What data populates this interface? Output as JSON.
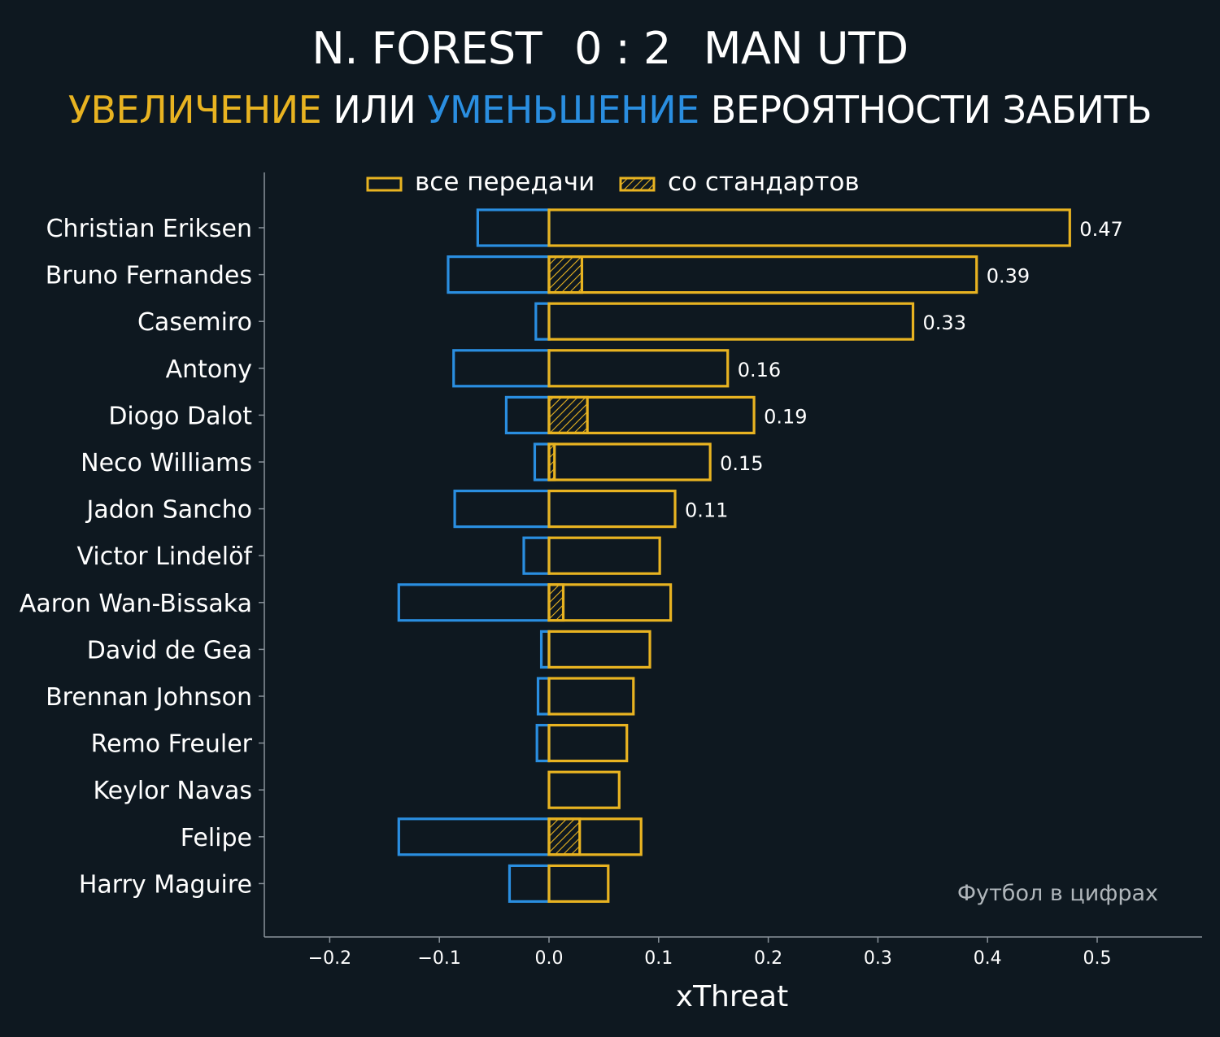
{
  "title": {
    "home_team": "N. FOREST",
    "score": "0 : 2",
    "away_team": "MAN UTD"
  },
  "subtitle": {
    "part_increase": "УВЕЛИЧЕНИЕ",
    "part_or": "ИЛИ",
    "part_decrease": "УМЕНЬШЕНИЕ",
    "part_rest": "ВЕРОЯТНОСТИ ЗАБИТЬ"
  },
  "watermark": "Футбол в цифрах",
  "colors": {
    "background": "#0e1820",
    "increase": "#e8b321",
    "decrease": "#2a8ee0",
    "text": "#ffffff",
    "axis": "#8a939b"
  },
  "chart_data": {
    "type": "bar",
    "orientation": "horizontal",
    "xlabel": "xThreat",
    "xlim": [
      -0.26,
      0.59
    ],
    "xticks": [
      -0.2,
      -0.1,
      0.0,
      0.1,
      0.2,
      0.3,
      0.4,
      0.5
    ],
    "xtick_labels": [
      "−0.2",
      "−0.1",
      "0.0",
      "0.1",
      "0.2",
      "0.3",
      "0.4",
      "0.5"
    ],
    "legend": {
      "position": "top",
      "entries": [
        {
          "label": "все передачи",
          "style": "outline"
        },
        {
          "label": "со стандартов",
          "style": "hatched"
        }
      ]
    },
    "grid": false,
    "players": [
      {
        "name": "Christian Eriksen",
        "positive": 0.475,
        "negative": -0.065,
        "set_piece": 0.0,
        "value_label": "0.47"
      },
      {
        "name": "Bruno Fernandes",
        "positive": 0.39,
        "negative": -0.092,
        "set_piece": 0.03,
        "value_label": "0.39"
      },
      {
        "name": "Casemiro",
        "positive": 0.332,
        "negative": -0.012,
        "set_piece": 0.0,
        "value_label": "0.33"
      },
      {
        "name": "Antony",
        "positive": 0.163,
        "negative": -0.087,
        "set_piece": 0.0,
        "value_label": "0.16"
      },
      {
        "name": "Diogo Dalot",
        "positive": 0.187,
        "negative": -0.039,
        "set_piece": 0.035,
        "value_label": "0.19"
      },
      {
        "name": "Neco Williams",
        "positive": 0.147,
        "negative": -0.013,
        "set_piece": 0.005,
        "value_label": "0.15"
      },
      {
        "name": "Jadon Sancho",
        "positive": 0.115,
        "negative": -0.086,
        "set_piece": 0.0,
        "value_label": "0.11"
      },
      {
        "name": "Victor Lindelöf",
        "positive": 0.101,
        "negative": -0.023,
        "set_piece": 0.0,
        "value_label": ""
      },
      {
        "name": "Aaron Wan-Bissaka",
        "positive": 0.111,
        "negative": -0.137,
        "set_piece": 0.013,
        "value_label": ""
      },
      {
        "name": "David de Gea",
        "positive": 0.092,
        "negative": -0.007,
        "set_piece": 0.0,
        "value_label": ""
      },
      {
        "name": "Brennan Johnson",
        "positive": 0.077,
        "negative": -0.01,
        "set_piece": 0.0,
        "value_label": ""
      },
      {
        "name": "Remo Freuler",
        "positive": 0.071,
        "negative": -0.011,
        "set_piece": 0.0,
        "value_label": ""
      },
      {
        "name": "Keylor Navas",
        "positive": 0.064,
        "negative": 0.0,
        "set_piece": 0.0,
        "value_label": ""
      },
      {
        "name": "Felipe",
        "positive": 0.084,
        "negative": -0.137,
        "set_piece": 0.028,
        "value_label": ""
      },
      {
        "name": "Harry Maguire",
        "positive": 0.054,
        "negative": -0.036,
        "set_piece": 0.0,
        "value_label": ""
      }
    ]
  }
}
